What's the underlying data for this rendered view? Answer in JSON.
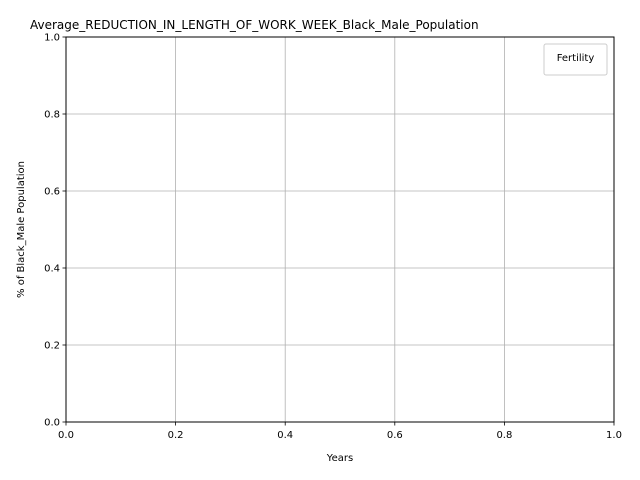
{
  "chart_data": {
    "type": "line",
    "title": "Average_REDUCTION_IN_LENGTH_OF_WORK_WEEK_Black_Male_Population",
    "xlabel": "Years",
    "ylabel": "% of Black_Male Population",
    "xlim": [
      0.0,
      1.0
    ],
    "ylim": [
      0.0,
      1.0
    ],
    "xticks": [
      "0.0",
      "0.2",
      "0.4",
      "0.6",
      "0.8",
      "1.0"
    ],
    "yticks": [
      "0.0",
      "0.2",
      "0.4",
      "0.6",
      "0.8",
      "1.0"
    ],
    "grid": true,
    "legend": {
      "title": "Fertility",
      "placement": "top-right",
      "entries": []
    },
    "series": []
  },
  "colors": {
    "grid": "#b0b0b0",
    "axis": "#000000",
    "background": "#ffffff"
  }
}
